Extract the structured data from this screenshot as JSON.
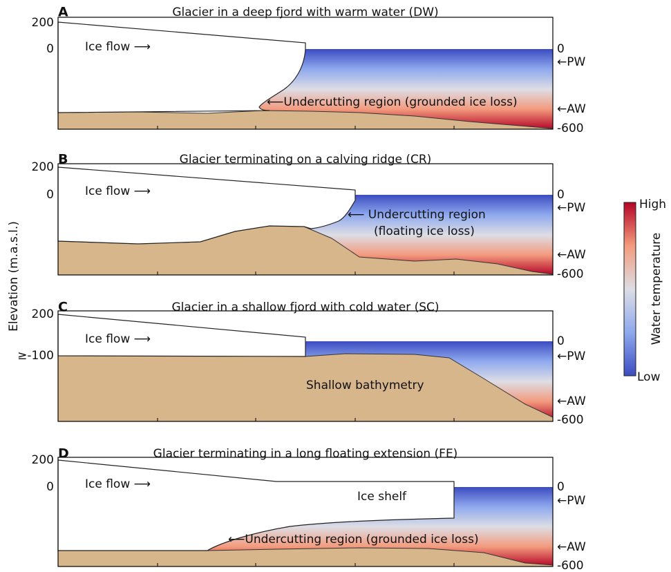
{
  "y_axis_label": "Elevation (m.a.s.l.)",
  "colorbar": {
    "high": "High",
    "low": "Low",
    "label": "Water temperature"
  },
  "panels": [
    {
      "letter": "A",
      "title": "Glacier in a deep fjord with warm water (DW)",
      "left_labels": [
        "200",
        "0"
      ],
      "right_labels": [
        "0",
        "←PW",
        "←AW",
        "-600"
      ],
      "annotations": [
        "Ice flow ⟶",
        "⟵Undercutting region (grounded ice loss)"
      ]
    },
    {
      "letter": "B",
      "title": "Glacier terminating on a calving ridge (CR)",
      "left_labels": [
        "200",
        "0"
      ],
      "right_labels": [
        "0",
        "←PW",
        "←AW",
        "-600"
      ],
      "annotations": [
        "Ice flow ⟶",
        "⟵ Undercutting region",
        "(floating ice loss)"
      ]
    },
    {
      "letter": "C",
      "title": "Glacier in a shallow fjord with cold water (SC)",
      "left_labels": [
        "200",
        "≥-100"
      ],
      "right_labels": [
        "0",
        "←PW",
        "←AW",
        "-600"
      ],
      "annotations": [
        "Ice flow ⟶",
        "Shallow bathymetry"
      ]
    },
    {
      "letter": "D",
      "title": "Glacier terminating in a long floating extension (FE)",
      "left_labels": [
        "200",
        "0"
      ],
      "right_labels": [
        "0",
        "←PW",
        "←AW",
        "-600"
      ],
      "annotations": [
        "Ice flow ⟶",
        "Ice shelf",
        "⟵Undercutting region (grounded ice loss)"
      ]
    }
  ]
}
